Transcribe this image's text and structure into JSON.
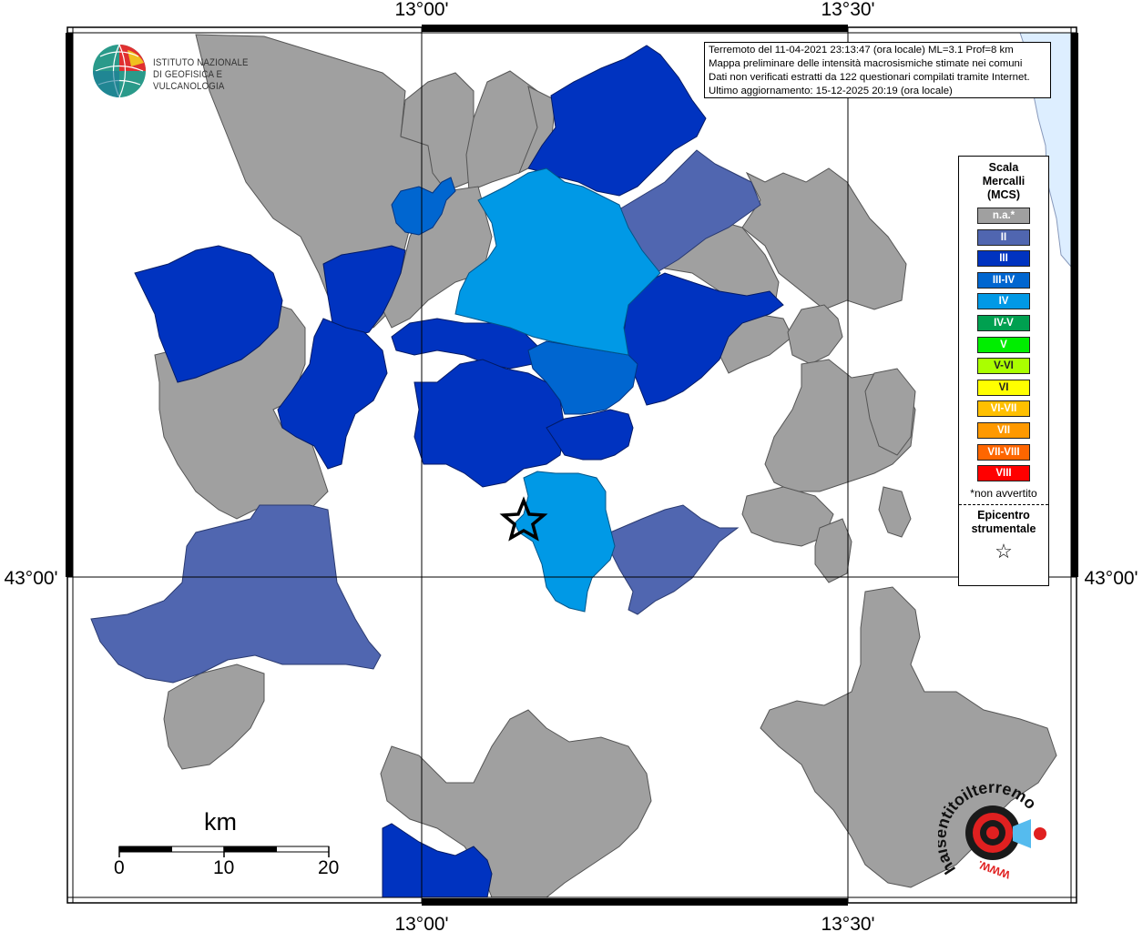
{
  "coords": {
    "top_left": "13°00'",
    "top_right": "13°30'",
    "bottom_left": "13°00'",
    "bottom_right": "13°30'",
    "left_mid": "43°00'",
    "right_mid": "43°00'"
  },
  "institute": {
    "line1": "ISTITUTO NAZIONALE",
    "line2": "DI GEOFISICA E VULCANOLOGIA"
  },
  "info": {
    "line1": "Terremoto del 11-04-2021 23:13:47 (ora locale) ML=3.1 Prof=8 km",
    "line2": "Mappa preliminare delle intensità macrosismiche stimate nei comuni",
    "line3": "Dati non verificati estratti da 122 questionari compilati tramite Internet.",
    "line4": "Ultimo aggiornamento: 15-12-2025 20:19 (ora locale)"
  },
  "legend": {
    "title_line1": "Scala",
    "title_line2": "Mercalli",
    "title_line3": "(MCS)",
    "items": [
      {
        "label": "n.a.*",
        "color": "#a0a0a0"
      },
      {
        "label": "II",
        "color": "#5066b0"
      },
      {
        "label": "III",
        "color": "#0033c0"
      },
      {
        "label": "III-IV",
        "color": "#0066d0"
      },
      {
        "label": "IV",
        "color": "#0099e6"
      },
      {
        "label": "IV-V",
        "color": "#00a050"
      },
      {
        "label": "V",
        "color": "#00ee00"
      },
      {
        "label": "V-VI",
        "color": "#aaff00"
      },
      {
        "label": "VI",
        "color": "#ffff00"
      },
      {
        "label": "VI-VII",
        "color": "#ffc000"
      },
      {
        "label": "VII",
        "color": "#ff9900"
      },
      {
        "label": "VII-VIII",
        "color": "#ff6600"
      },
      {
        "label": "VIII",
        "color": "#ff0000"
      }
    ],
    "note": "*non avvertito",
    "epicenter_line1": "Epicentro",
    "epicenter_line2": "strumentale"
  },
  "scale": {
    "unit": "km",
    "label_0": "0",
    "label_10": "10",
    "label_20": "20"
  },
  "watermark": {
    "text": "haisentitoilterremoto.it",
    "url_text": "WWW."
  },
  "colors": {
    "na": "#a0a0a0",
    "II": "#5066b0",
    "III": "#0033c0",
    "III-IV": "#0066d0",
    "IV": "#0099e6",
    "sea": "#ddeeff"
  }
}
